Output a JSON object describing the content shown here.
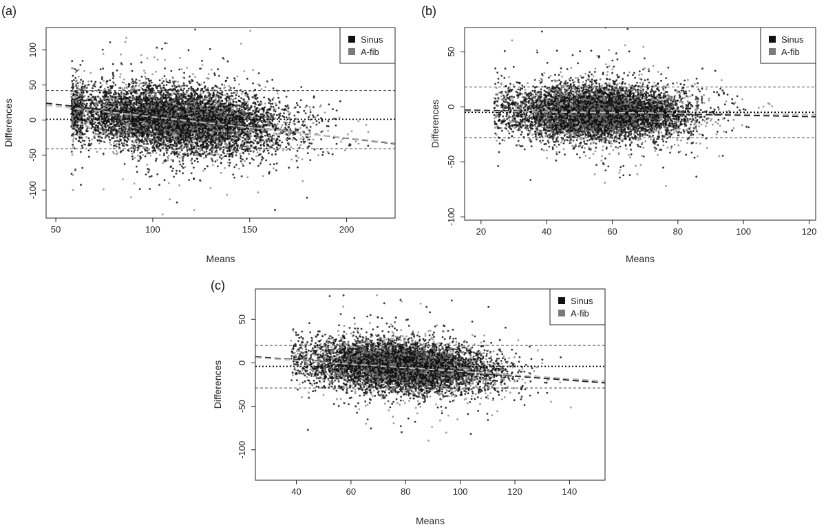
{
  "colors": {
    "sinus": "#111111",
    "afib": "#7a7a7a",
    "trend_sinus": "#222222",
    "trend_afib": "#bdbdbd",
    "line": "#444444"
  },
  "chart_data": [
    {
      "type": "scatter",
      "panel_label": "(a)",
      "xlabel": "Means",
      "ylabel": "Differences",
      "xlim": [
        45,
        225
      ],
      "ylim": [
        -140,
        132
      ],
      "xticks": [
        50,
        100,
        150,
        200
      ],
      "yticks": [
        -100,
        -50,
        0,
        50,
        100
      ],
      "legend": [
        "Sinus",
        "A-fib"
      ],
      "legend_position": "top-right",
      "mean_difference": 1,
      "limits_of_agreement": [
        42,
        -41
      ],
      "cloud": {
        "x_center": 112,
        "x_spread": 28,
        "x_min": 58,
        "x_max": 212,
        "y_intercept": 1,
        "y_slope": -0.22,
        "y_spread": 22,
        "n_points": 9000
      },
      "trend_sinus": {
        "x": [
          45,
          225
        ],
        "y": [
          24,
          -34
        ]
      },
      "trend_afib": {
        "x": [
          45,
          225
        ],
        "y": [
          21,
          -33
        ]
      }
    },
    {
      "type": "scatter",
      "panel_label": "(b)",
      "xlabel": "Means",
      "ylabel": "Differences",
      "xlim": [
        15,
        122
      ],
      "ylim": [
        -103,
        72
      ],
      "xticks": [
        20,
        40,
        60,
        80,
        100,
        120
      ],
      "yticks": [
        -100,
        -50,
        0,
        50
      ],
      "legend": [
        "Sinus",
        "A-fib"
      ],
      "legend_position": "top-right",
      "mean_difference": -5,
      "limits_of_agreement": [
        18,
        -28
      ],
      "cloud": {
        "x_center": 56,
        "x_spread": 14,
        "x_min": 24,
        "x_max": 112,
        "y_intercept": -5,
        "y_slope": -0.04,
        "y_spread": 12,
        "n_points": 8000
      },
      "trend_sinus": {
        "x": [
          15,
          122
        ],
        "y": [
          -3,
          -9
        ]
      },
      "trend_afib": {
        "x": [
          15,
          122
        ],
        "y": [
          -4,
          -7
        ]
      }
    },
    {
      "type": "scatter",
      "panel_label": "(c)",
      "xlabel": "Means",
      "ylabel": "Differences",
      "xlim": [
        25,
        153
      ],
      "ylim": [
        -135,
        85
      ],
      "xticks": [
        40,
        60,
        80,
        100,
        120,
        140
      ],
      "yticks": [
        -100,
        -50,
        0,
        50
      ],
      "legend": [
        "Sinus",
        "A-fib"
      ],
      "legend_position": "top-right",
      "mean_difference": -4,
      "limits_of_agreement": [
        20,
        -29
      ],
      "cloud": {
        "x_center": 78,
        "x_spread": 17,
        "x_min": 38,
        "x_max": 145,
        "y_intercept": -4,
        "y_slope": -0.2,
        "y_spread": 14,
        "n_points": 8000
      },
      "trend_sinus": {
        "x": [
          25,
          153
        ],
        "y": [
          7,
          -23
        ]
      },
      "trend_afib": {
        "x": [
          25,
          153
        ],
        "y": [
          6,
          -21
        ]
      }
    }
  ]
}
